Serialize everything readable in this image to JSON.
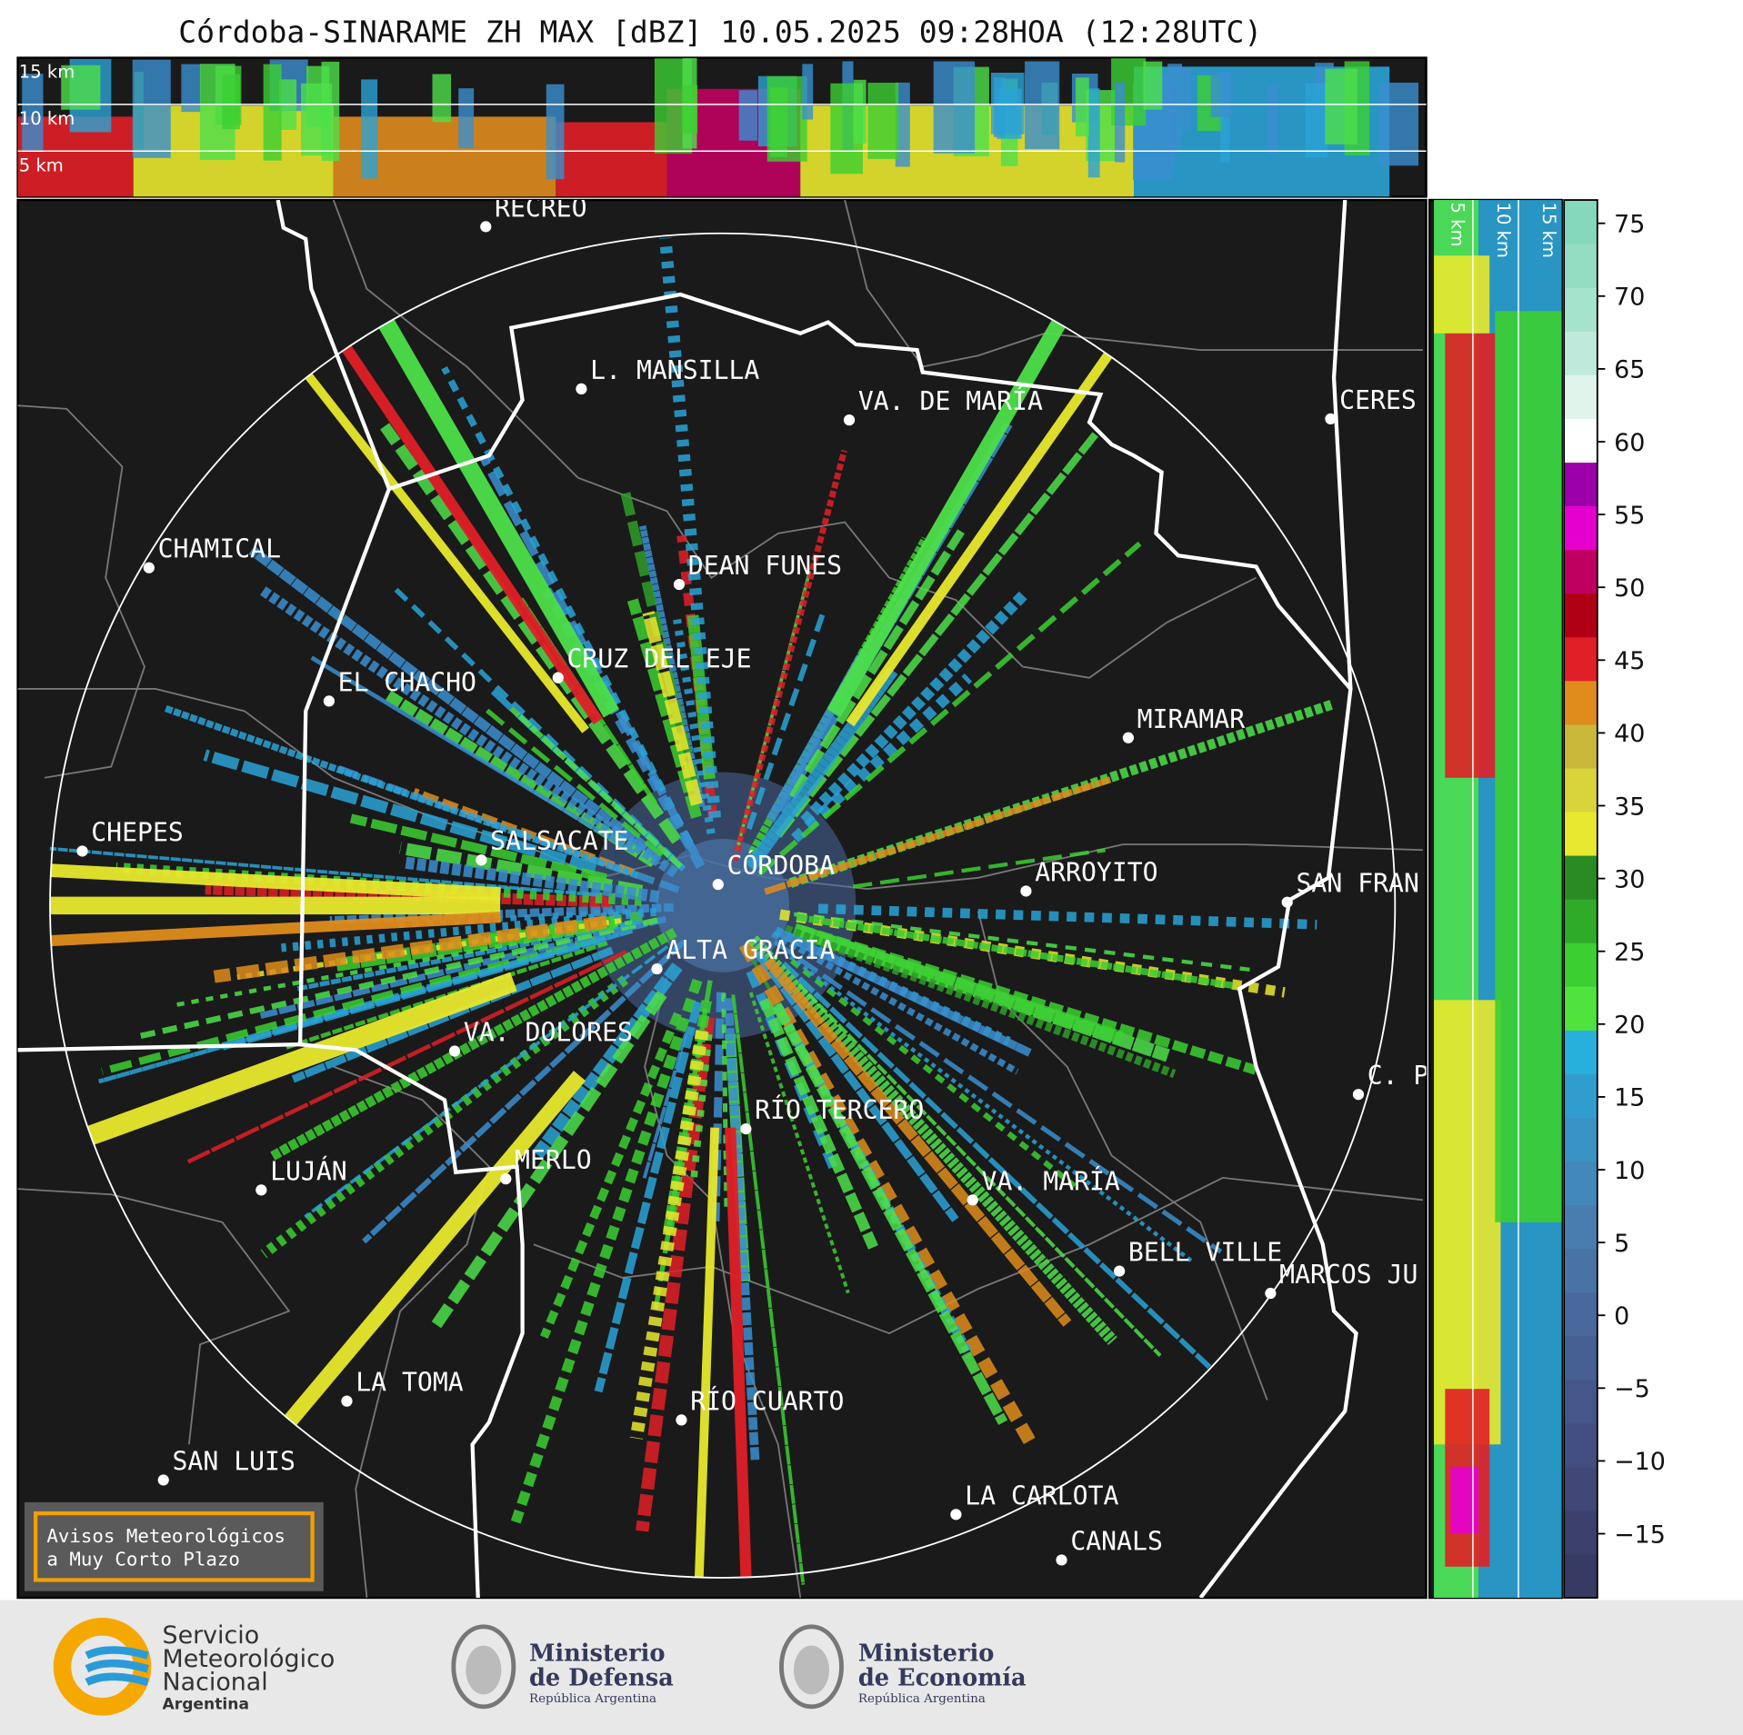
{
  "title": "Córdoba-SINARAME ZH MAX [dBZ] 10.05.2025 09:28HOA (12:28UTC)",
  "top_panel": {
    "height_labels": [
      "15 km",
      "10 km",
      "5 km"
    ]
  },
  "side_panel": {
    "height_labels": [
      "5 km",
      "10 km",
      "15 km"
    ]
  },
  "map": {
    "cities": [
      "RECREO",
      "L. MANSILLA",
      "VA. DE MARÍA",
      "CERES",
      "CHAMICAL",
      "DEAN FUNES",
      "CRUZ DEL EJE",
      "EL CHACHO",
      "MIRAMAR",
      "CHEPES",
      "SALSACATE",
      "CÓRDOBA",
      "ARROYITO",
      "SAN FRAN",
      "ALTA GRACIA",
      "VA. DOLORES",
      "C. P",
      "RÍO TERCERO",
      "MERLO",
      "LUJÁN",
      "VA. MARÍA",
      "BELL VILLE",
      "MARCOS JU",
      "LA TOMA",
      "RÍO CUARTO",
      "SAN LUIS",
      "LA CARLOTA",
      "CANALS"
    ]
  },
  "colorbar": {
    "range": [
      -19.4,
      76.6
    ],
    "ticks": [
      {
        "value": -15,
        "label": "−15"
      },
      {
        "value": -10,
        "label": "−10"
      },
      {
        "value": -5,
        "label": "−5"
      },
      0,
      5,
      10,
      15,
      20,
      25,
      30,
      35,
      40,
      45,
      50,
      55,
      60,
      65,
      70,
      75
    ],
    "colors": [
      "#373a62",
      "#3c416c",
      "#404877",
      "#434f81",
      "#45578a",
      "#476093",
      "#49699c",
      "#4a73a5",
      "#4a7daf",
      "#4388ba",
      "#3993c4",
      "#2f9ecf",
      "#28b0dc",
      "#4fe33b",
      "#3ccf32",
      "#2fab29",
      "#2a8a24",
      "#e8e82e",
      "#d8d43a",
      "#c9b83a",
      "#e08c1c",
      "#e01f26",
      "#b00015",
      "#c00060",
      "#e600d0",
      "#9c00a8",
      "#ffffff",
      "#e0f4ec",
      "#bfeadb",
      "#a6e3cc",
      "#93dcc2",
      "#86d8bc"
    ]
  },
  "notice": {
    "lines": [
      "Avisos Meteorológicos",
      "a Muy Corto Plazo"
    ]
  },
  "footer": {
    "smn": [
      "Servicio",
      "Meteorológico",
      "Nacional",
      "Argentina"
    ],
    "defensa": [
      "Ministerio",
      "de Defensa",
      "República Argentina"
    ],
    "economia": [
      "Ministerio",
      "de Economía",
      "República Argentina"
    ]
  }
}
